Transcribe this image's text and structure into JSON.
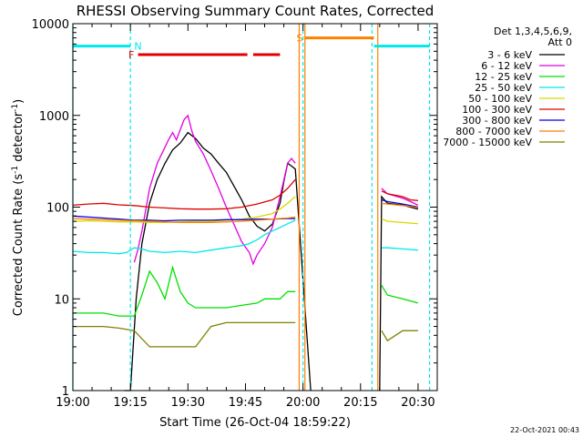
{
  "chart_data": {
    "type": "line",
    "title": "RHESSI Observing Summary Count Rates, Corrected",
    "xlabel": "Start Time (26-Oct-04 18:59:22)",
    "ylabel_main": "Corrected Count Rate (s",
    "ylabel_sup1": "-1",
    "ylabel_mid": " detector",
    "ylabel_sup2": "-1",
    "ylabel_end": ")",
    "xlim_min": [
      0,
      95
    ],
    "ylim": [
      1,
      10000
    ],
    "y_scale": "log",
    "x_ticks": [
      {
        "m": 0,
        "label": "19:00"
      },
      {
        "m": 15,
        "label": "19:15"
      },
      {
        "m": 30,
        "label": "19:30"
      },
      {
        "m": 45,
        "label": "19:45"
      },
      {
        "m": 60,
        "label": "20:00"
      },
      {
        "m": 75,
        "label": "20:15"
      },
      {
        "m": 90,
        "label": "20:30"
      }
    ],
    "y_ticks": [
      {
        "v": 1,
        "label": "1"
      },
      {
        "v": 10,
        "label": "10"
      },
      {
        "v": 100,
        "label": "100"
      },
      {
        "v": 1000,
        "label": "1000"
      },
      {
        "v": 10000,
        "label": "10000"
      }
    ],
    "legend_title_1": "Det 1,3,4,5,6,9,",
    "legend_title_2": "Att 0",
    "series": [
      {
        "name": "3 - 6 keV",
        "color": "#000000",
        "key": "s1"
      },
      {
        "name": "6 - 12 keV",
        "color": "#e000e0",
        "key": "s2"
      },
      {
        "name": "12 - 25 keV",
        "color": "#00e000",
        "key": "s3"
      },
      {
        "name": "25 - 50 keV",
        "color": "#00e8e8",
        "key": "s4"
      },
      {
        "name": "50 - 100 keV",
        "color": "#d8d800",
        "key": "s5"
      },
      {
        "name": "100 - 300 keV",
        "color": "#e00000",
        "key": "s6"
      },
      {
        "name": "300 - 800 keV",
        "color": "#0000e0",
        "key": "s7"
      },
      {
        "name": "800 - 7000 keV",
        "color": "#ff8000",
        "key": "s8"
      },
      {
        "name": "7000 - 15000 keV",
        "color": "#808000",
        "key": "s9"
      }
    ],
    "data": {
      "s1": [
        [
          13.5,
          1
        ],
        [
          15,
          1
        ],
        [
          16.5,
          10
        ],
        [
          18,
          40
        ],
        [
          20,
          110
        ],
        [
          22,
          200
        ],
        [
          24,
          300
        ],
        [
          26,
          420
        ],
        [
          28,
          500
        ],
        [
          30,
          650
        ],
        [
          32,
          560
        ],
        [
          34,
          440
        ],
        [
          36,
          380
        ],
        [
          38,
          300
        ],
        [
          40,
          240
        ],
        [
          42,
          170
        ],
        [
          44,
          120
        ],
        [
          46,
          80
        ],
        [
          48,
          62
        ],
        [
          50,
          55
        ],
        [
          52,
          65
        ],
        [
          54,
          110
        ],
        [
          55,
          190
        ],
        [
          56,
          300
        ],
        [
          57,
          280
        ],
        [
          58,
          260
        ],
        [
          62,
          1
        ],
        [
          80,
          1
        ],
        [
          80.5,
          130
        ],
        [
          82,
          110
        ],
        [
          86,
          105
        ],
        [
          88,
          100
        ],
        [
          90,
          95
        ]
      ],
      "s2": [
        [
          16,
          25
        ],
        [
          17,
          35
        ],
        [
          18,
          55
        ],
        [
          20,
          160
        ],
        [
          22,
          300
        ],
        [
          24,
          450
        ],
        [
          25,
          550
        ],
        [
          26,
          650
        ],
        [
          27,
          540
        ],
        [
          28,
          700
        ],
        [
          29,
          900
        ],
        [
          30,
          1000
        ],
        [
          31,
          680
        ],
        [
          32,
          520
        ],
        [
          34,
          380
        ],
        [
          36,
          250
        ],
        [
          38,
          160
        ],
        [
          40,
          100
        ],
        [
          42,
          65
        ],
        [
          44,
          42
        ],
        [
          46,
          32
        ],
        [
          47,
          24
        ],
        [
          48,
          30
        ],
        [
          50,
          40
        ],
        [
          52,
          60
        ],
        [
          54,
          130
        ],
        [
          56,
          300
        ],
        [
          57,
          340
        ],
        [
          58,
          300
        ],
        [
          80.5,
          160
        ],
        [
          82,
          140
        ],
        [
          86,
          125
        ],
        [
          88,
          115
        ],
        [
          90,
          105
        ]
      ],
      "s3": [
        [
          0,
          7
        ],
        [
          4,
          7
        ],
        [
          8,
          7
        ],
        [
          12,
          6.5
        ],
        [
          16,
          6.5
        ],
        [
          18,
          11
        ],
        [
          20,
          20
        ],
        [
          22,
          15
        ],
        [
          24,
          10
        ],
        [
          26,
          22
        ],
        [
          28,
          12
        ],
        [
          30,
          9
        ],
        [
          32,
          8
        ],
        [
          36,
          8
        ],
        [
          40,
          8
        ],
        [
          44,
          8.5
        ],
        [
          48,
          9
        ],
        [
          50,
          10
        ],
        [
          54,
          10
        ],
        [
          56,
          12
        ],
        [
          58,
          12
        ],
        [
          80.5,
          14
        ],
        [
          82,
          11
        ],
        [
          86,
          10
        ],
        [
          90,
          9
        ]
      ],
      "s4": [
        [
          0,
          33
        ],
        [
          4,
          32
        ],
        [
          8,
          32
        ],
        [
          12,
          31
        ],
        [
          14,
          32
        ],
        [
          16,
          36
        ],
        [
          18,
          35
        ],
        [
          20,
          33
        ],
        [
          24,
          32
        ],
        [
          28,
          33
        ],
        [
          32,
          32
        ],
        [
          36,
          34
        ],
        [
          40,
          36
        ],
        [
          44,
          38
        ],
        [
          46,
          40
        ],
        [
          48,
          44
        ],
        [
          50,
          50
        ],
        [
          52,
          55
        ],
        [
          54,
          60
        ],
        [
          56,
          66
        ],
        [
          58,
          72
        ],
        [
          80.5,
          36
        ],
        [
          82,
          36
        ],
        [
          86,
          35
        ],
        [
          90,
          34
        ]
      ],
      "s5": [
        [
          0,
          70
        ],
        [
          4,
          71
        ],
        [
          8,
          70
        ],
        [
          12,
          69
        ],
        [
          16,
          69
        ],
        [
          20,
          68
        ],
        [
          24,
          68
        ],
        [
          28,
          69
        ],
        [
          32,
          70
        ],
        [
          36,
          70
        ],
        [
          40,
          72
        ],
        [
          44,
          74
        ],
        [
          48,
          78
        ],
        [
          52,
          85
        ],
        [
          54,
          95
        ],
        [
          56,
          110
        ],
        [
          58,
          130
        ],
        [
          80.5,
          75
        ],
        [
          82,
          70
        ],
        [
          86,
          68
        ],
        [
          90,
          66
        ]
      ],
      "s6": [
        [
          0,
          105
        ],
        [
          4,
          108
        ],
        [
          8,
          110
        ],
        [
          12,
          106
        ],
        [
          16,
          104
        ],
        [
          20,
          100
        ],
        [
          24,
          98
        ],
        [
          28,
          96
        ],
        [
          32,
          95
        ],
        [
          36,
          95
        ],
        [
          40,
          96
        ],
        [
          44,
          100
        ],
        [
          48,
          108
        ],
        [
          52,
          120
        ],
        [
          54,
          135
        ],
        [
          56,
          160
        ],
        [
          58,
          200
        ],
        [
          80.5,
          150
        ],
        [
          82,
          140
        ],
        [
          86,
          130
        ],
        [
          88,
          120
        ],
        [
          90,
          118
        ]
      ],
      "s7": [
        [
          0,
          80
        ],
        [
          4,
          78
        ],
        [
          8,
          76
        ],
        [
          12,
          74
        ],
        [
          16,
          72
        ],
        [
          20,
          72
        ],
        [
          24,
          71
        ],
        [
          28,
          72
        ],
        [
          32,
          72
        ],
        [
          36,
          72
        ],
        [
          40,
          73
        ],
        [
          44,
          73
        ],
        [
          48,
          74
        ],
        [
          52,
          74
        ],
        [
          56,
          75
        ],
        [
          58,
          75
        ],
        [
          80.5,
          120
        ],
        [
          82,
          115
        ],
        [
          86,
          108
        ],
        [
          88,
          104
        ],
        [
          90,
          100
        ]
      ],
      "s8": [
        [
          0,
          75
        ],
        [
          4,
          74
        ],
        [
          8,
          73
        ],
        [
          12,
          72
        ],
        [
          16,
          71
        ],
        [
          20,
          70
        ],
        [
          24,
          69
        ],
        [
          28,
          68
        ],
        [
          32,
          68
        ],
        [
          36,
          68
        ],
        [
          40,
          69
        ],
        [
          44,
          70
        ],
        [
          48,
          72
        ],
        [
          52,
          74
        ],
        [
          56,
          76
        ],
        [
          58,
          78
        ],
        [
          80.5,
          110
        ],
        [
          82,
          108
        ],
        [
          86,
          104
        ],
        [
          88,
          102
        ],
        [
          90,
          98
        ]
      ],
      "s9": [
        [
          0,
          5
        ],
        [
          4,
          5
        ],
        [
          8,
          5
        ],
        [
          12,
          4.8
        ],
        [
          16,
          4.5
        ],
        [
          20,
          3
        ],
        [
          24,
          3
        ],
        [
          28,
          3
        ],
        [
          32,
          3
        ],
        [
          36,
          5
        ],
        [
          40,
          5.5
        ],
        [
          44,
          5.5
        ],
        [
          48,
          5.5
        ],
        [
          52,
          5.5
        ],
        [
          56,
          5.5
        ],
        [
          58,
          5.5
        ],
        [
          80.5,
          4.5
        ],
        [
          82,
          3.5
        ],
        [
          86,
          4.5
        ],
        [
          90,
          4.5
        ]
      ]
    },
    "annotations": [
      {
        "type": "dashed_vline",
        "x": 15,
        "color": "#00e8e8"
      },
      {
        "type": "dashed_vline",
        "x": 60,
        "color": "#00e8e8"
      },
      {
        "type": "dashed_vline",
        "x": 78,
        "color": "#00e8e8"
      },
      {
        "type": "dashed_vline",
        "x": 93,
        "color": "#00e8e8"
      },
      {
        "type": "solid_vline",
        "x": 0,
        "color": "#00e8e8"
      },
      {
        "type": "solid_vline",
        "x": 59,
        "color": "#ff8000"
      },
      {
        "type": "solid_vline",
        "x": 60.5,
        "color": "#ff8000"
      },
      {
        "type": "solid_vline",
        "x": 79.5,
        "color": "#ff8000"
      }
    ],
    "flags": [
      {
        "label": "N",
        "x0": 0,
        "x1": 15,
        "y": 5700,
        "color": "#00e8e8",
        "label_x": 16
      },
      {
        "label": "",
        "x0": 78.5,
        "x1": 93,
        "y": 5700,
        "color": "#00e8e8"
      },
      {
        "label": "F",
        "x0": 17,
        "x1": 45.5,
        "y": 4600,
        "color": "#e00000",
        "label_x": 14.5
      },
      {
        "label": "",
        "x0": 47,
        "x1": 54,
        "y": 4600,
        "color": "#e00000"
      },
      {
        "label": "S",
        "x0": 60.5,
        "x1": 78.5,
        "y": 7000,
        "color": "#ff8000",
        "label_x": 58.3
      }
    ],
    "footer_date": "22-Oct-2021 00:43"
  }
}
